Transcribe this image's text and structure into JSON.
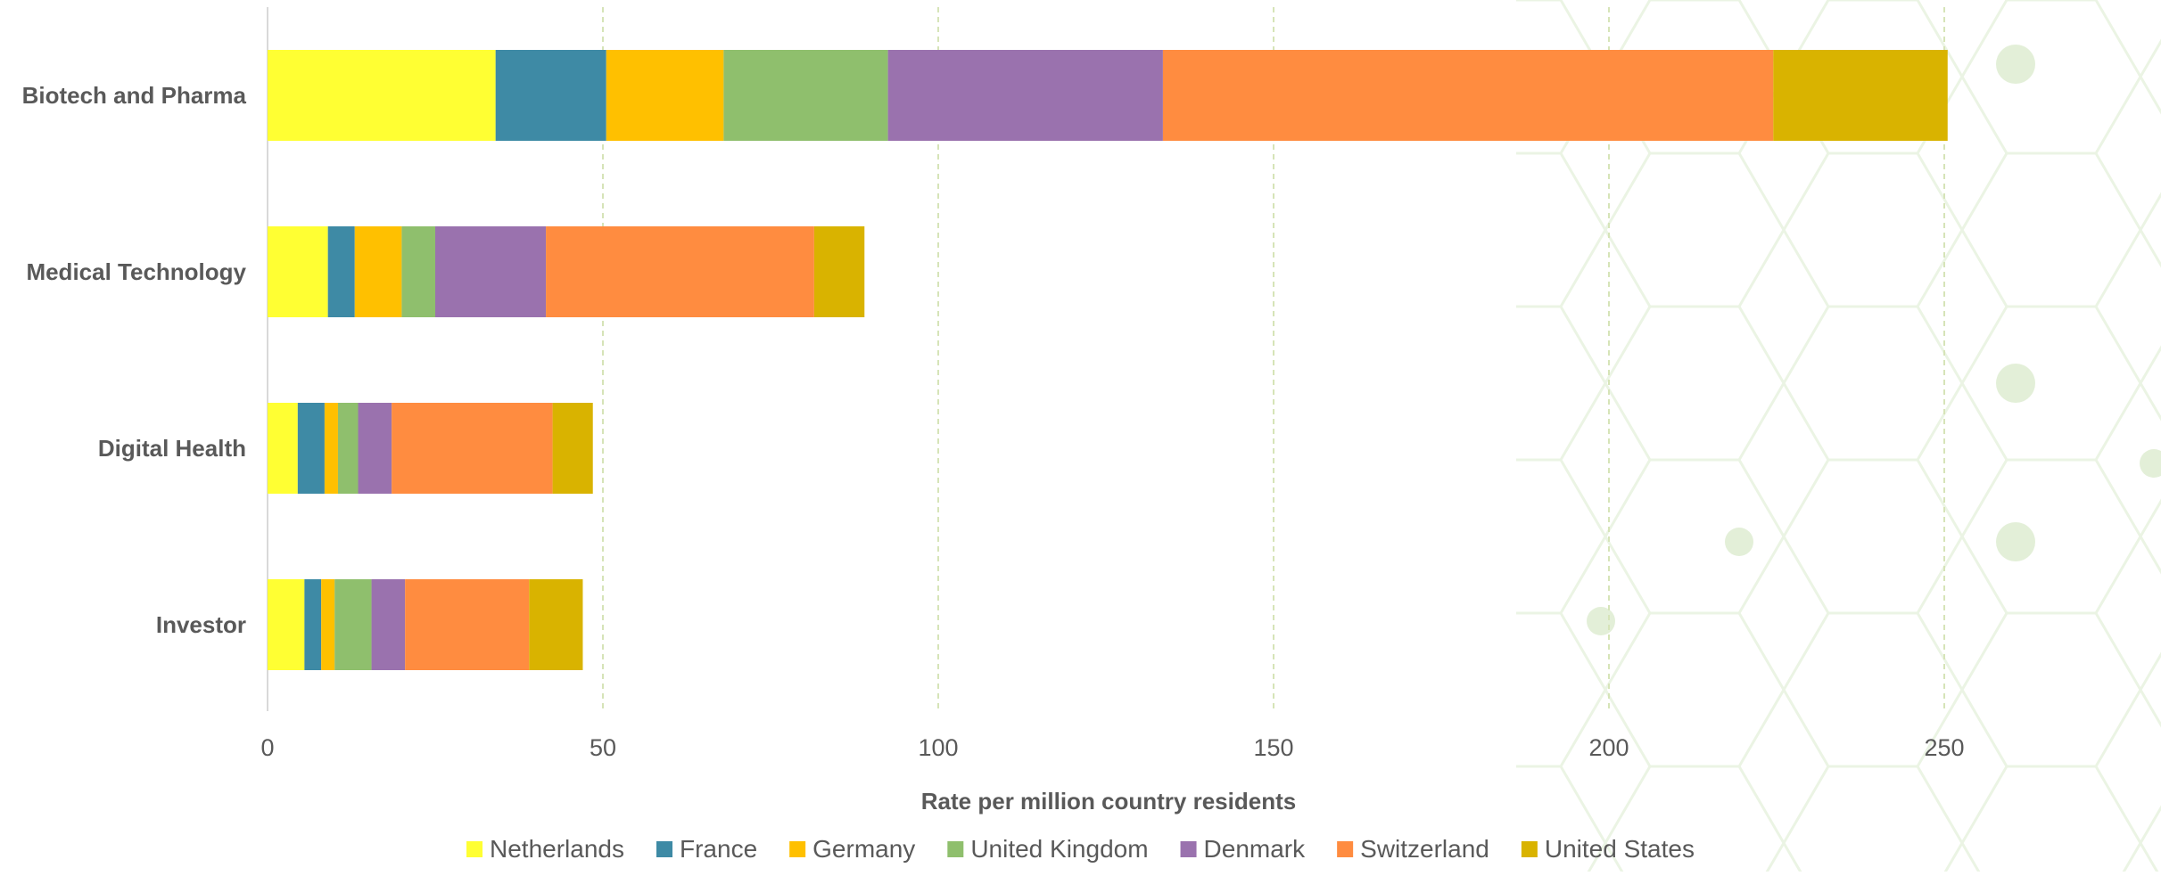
{
  "chart_data": {
    "type": "bar",
    "orientation": "horizontal",
    "stacked": true,
    "title": "",
    "xlabel": "Rate per million country residents",
    "ylabel": "",
    "xlim": [
      0,
      250
    ],
    "xticks": [
      "0",
      "50",
      "100",
      "150",
      "200",
      "250"
    ],
    "grid": "vertical dashed",
    "legend_position": "bottom",
    "categories": [
      "Biotech and Pharma",
      "Medical Technology",
      "Digital Health",
      "Investor"
    ],
    "series": [
      {
        "name": "Netherlands",
        "color": "#FFFF33",
        "values": [
          34,
          9,
          4.5,
          5.5
        ]
      },
      {
        "name": "France",
        "color": "#3E8AA5",
        "values": [
          16.5,
          4,
          4,
          2.5
        ]
      },
      {
        "name": "Germany",
        "color": "#FFC000",
        "values": [
          17.5,
          7,
          2,
          2
        ]
      },
      {
        "name": "United Kingdom",
        "color": "#8FBF6D",
        "values": [
          24.5,
          5,
          3,
          5.5
        ]
      },
      {
        "name": "Denmark",
        "color": "#9A72AE",
        "values": [
          41,
          16.5,
          5,
          5
        ]
      },
      {
        "name": "Switzerland",
        "color": "#FF8C40",
        "values": [
          91,
          40,
          24,
          18.5
        ]
      },
      {
        "name": "United States",
        "color": "#D9B300",
        "values": [
          26,
          7.5,
          6,
          8
        ]
      }
    ]
  }
}
